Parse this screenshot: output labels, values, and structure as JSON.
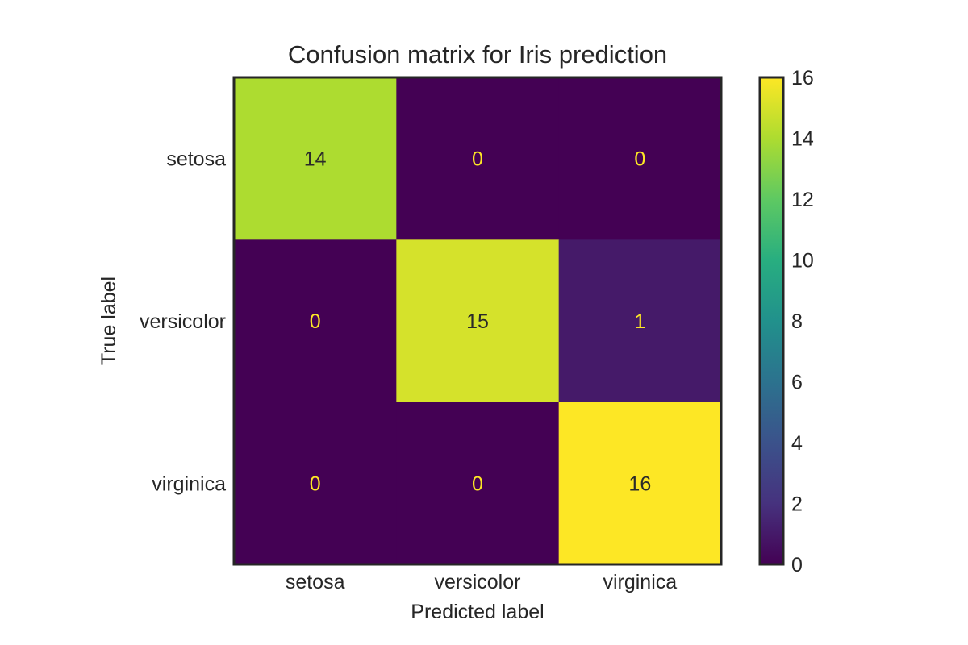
{
  "chart_data": {
    "type": "heatmap",
    "title": "Confusion matrix for Iris prediction",
    "xlabel": "Predicted label",
    "ylabel": "True label",
    "x_categories": [
      "setosa",
      "versicolor",
      "virginica"
    ],
    "y_categories": [
      "setosa",
      "versicolor",
      "virginica"
    ],
    "values": [
      [
        14,
        0,
        0
      ],
      [
        0,
        15,
        1
      ],
      [
        0,
        0,
        16
      ]
    ],
    "colormap": "viridis",
    "colorbar": {
      "min": 0,
      "max": 16,
      "ticks": [
        "0",
        "2",
        "4",
        "6",
        "8",
        "10",
        "12",
        "14",
        "16"
      ]
    },
    "grid": false,
    "text_colors": {
      "light": "#fde725",
      "dark": "#2a2a2a"
    }
  }
}
